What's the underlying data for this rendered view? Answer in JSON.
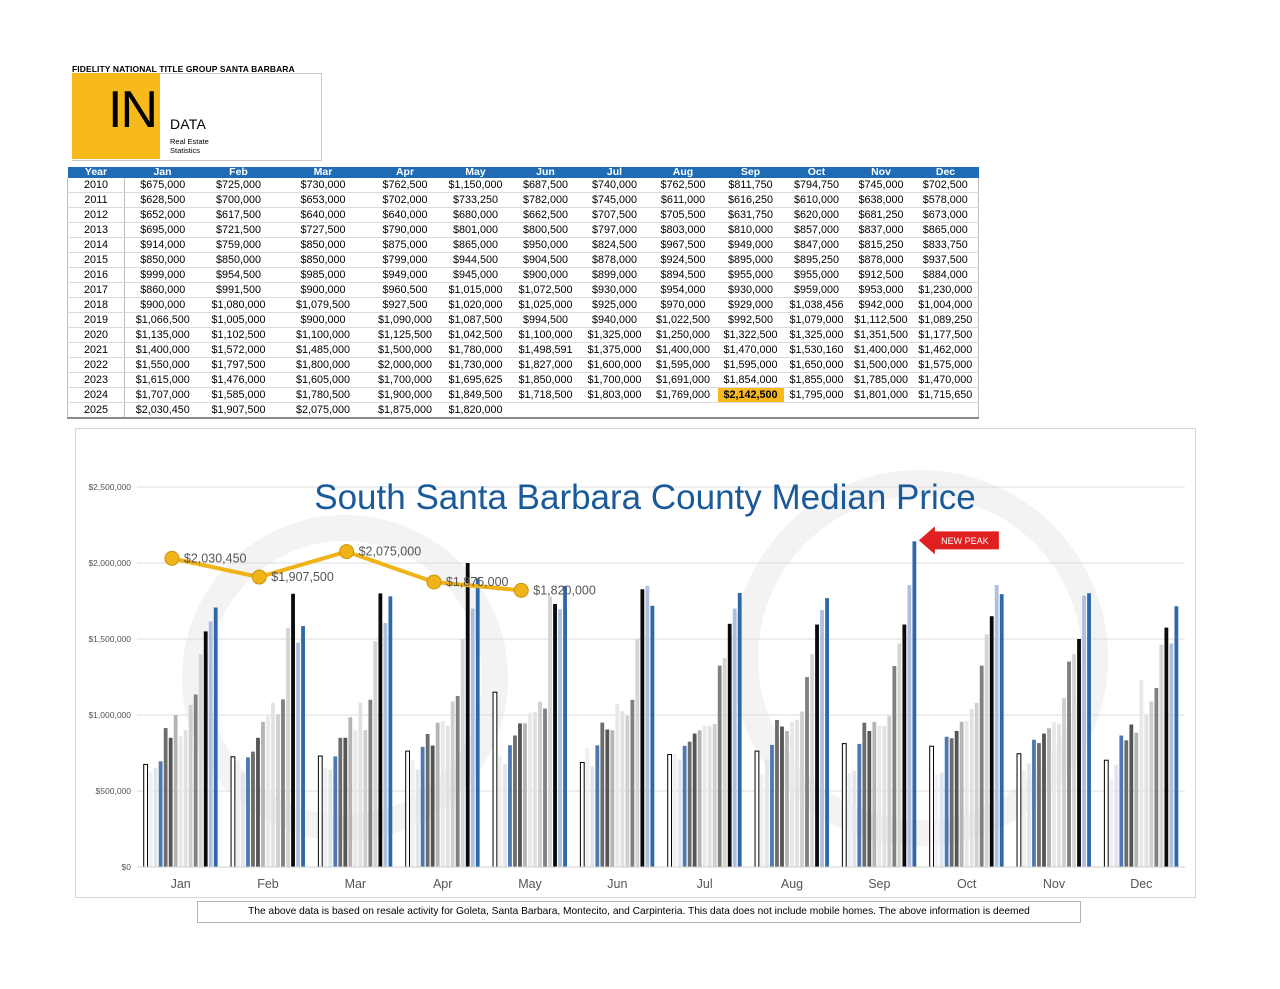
{
  "header": {
    "brand": "FIDELITY NATIONAL TITLE GROUP SANTA BARBARA",
    "logo_in": "IN",
    "logo_data": "DATA",
    "logo_sub1": "Real Estate",
    "logo_sub2": "Statistics"
  },
  "table": {
    "columns": [
      "Year",
      "Jan",
      "Feb",
      "Mar",
      "Apr",
      "May",
      "Jun",
      "Jul",
      "Aug",
      "Sep",
      "Oct",
      "Nov",
      "Dec"
    ],
    "rows": [
      [
        "2010",
        "$675,000",
        "$725,000",
        "$730,000",
        "$762,500",
        "$1,150,000",
        "$687,500",
        "$740,000",
        "$762,500",
        "$811,750",
        "$794,750",
        "$745,000",
        "$702,500"
      ],
      [
        "2011",
        "$628,500",
        "$700,000",
        "$653,000",
        "$702,000",
        "$733,250",
        "$782,000",
        "$745,000",
        "$611,000",
        "$616,250",
        "$610,000",
        "$638,000",
        "$578,000"
      ],
      [
        "2012",
        "$652,000",
        "$617,500",
        "$640,000",
        "$640,000",
        "$680,000",
        "$662,500",
        "$707,500",
        "$705,500",
        "$631,750",
        "$620,000",
        "$681,250",
        "$673,000"
      ],
      [
        "2013",
        "$695,000",
        "$721,500",
        "$727,500",
        "$790,000",
        "$801,000",
        "$800,500",
        "$797,000",
        "$803,000",
        "$810,000",
        "$857,000",
        "$837,000",
        "$865,000"
      ],
      [
        "2014",
        "$914,000",
        "$759,000",
        "$850,000",
        "$875,000",
        "$865,000",
        "$950,000",
        "$824,500",
        "$967,500",
        "$949,000",
        "$847,000",
        "$815,250",
        "$833,750"
      ],
      [
        "2015",
        "$850,000",
        "$850,000",
        "$850,000",
        "$799,000",
        "$944,500",
        "$904,500",
        "$878,000",
        "$924,500",
        "$895,000",
        "$895,250",
        "$878,000",
        "$937,500"
      ],
      [
        "2016",
        "$999,000",
        "$954,500",
        "$985,000",
        "$949,000",
        "$945,000",
        "$900,000",
        "$899,000",
        "$894,500",
        "$955,000",
        "$955,000",
        "$912,500",
        "$884,000"
      ],
      [
        "2017",
        "$860,000",
        "$991,500",
        "$900,000",
        "$960,500",
        "$1,015,000",
        "$1,072,500",
        "$930,000",
        "$954,000",
        "$930,000",
        "$959,000",
        "$953,000",
        "$1,230,000"
      ],
      [
        "2018",
        "$900,000",
        "$1,080,000",
        "$1,079,500",
        "$927,500",
        "$1,020,000",
        "$1,025,000",
        "$925,000",
        "$970,000",
        "$929,000",
        "$1,038,456",
        "$942,000",
        "$1,004,000"
      ],
      [
        "2019",
        "$1,066,500",
        "$1,005,000",
        "$900,000",
        "$1,090,000",
        "$1,087,500",
        "$994,500",
        "$940,000",
        "$1,022,500",
        "$992,500",
        "$1,079,000",
        "$1,112,500",
        "$1,089,250"
      ],
      [
        "2020",
        "$1,135,000",
        "$1,102,500",
        "$1,100,000",
        "$1,125,500",
        "$1,042,500",
        "$1,100,000",
        "$1,325,000",
        "$1,250,000",
        "$1,322,500",
        "$1,325,000",
        "$1,351,500",
        "$1,177,500"
      ],
      [
        "2021",
        "$1,400,000",
        "$1,572,000",
        "$1,485,000",
        "$1,500,000",
        "$1,780,000",
        "$1,498,591",
        "$1,375,000",
        "$1,400,000",
        "$1,470,000",
        "$1,530,160",
        "$1,400,000",
        "$1,462,000"
      ],
      [
        "2022",
        "$1,550,000",
        "$1,797,500",
        "$1,800,000",
        "$2,000,000",
        "$1,730,000",
        "$1,827,000",
        "$1,600,000",
        "$1,595,000",
        "$1,595,000",
        "$1,650,000",
        "$1,500,000",
        "$1,575,000"
      ],
      [
        "2023",
        "$1,615,000",
        "$1,476,000",
        "$1,605,000",
        "$1,700,000",
        "$1,695,625",
        "$1,850,000",
        "$1,700,000",
        "$1,691,000",
        "$1,854,000",
        "$1,855,000",
        "$1,785,000",
        "$1,470,000"
      ],
      [
        "2024",
        "$1,707,000",
        "$1,585,000",
        "$1,780,500",
        "$1,900,000",
        "$1,849,500",
        "$1,718,500",
        "$1,803,000",
        "$1,769,000",
        "$2,142,500",
        "$1,795,000",
        "$1,801,000",
        "$1,715,650"
      ],
      [
        "2025",
        "$2,030,450",
        "$1,907,500",
        "$2,075,000",
        "$1,875,000",
        "$1,820,000",
        "",
        "",
        "",
        "",
        "",
        "",
        ""
      ]
    ],
    "highlight_cell": {
      "row": 14,
      "col": 9,
      "color": "#f8b91c"
    }
  },
  "chart_data": {
    "type": "bar",
    "title": "South Santa Barbara County Median Price",
    "categories": [
      "Jan",
      "Feb",
      "Mar",
      "Apr",
      "May",
      "Jun",
      "Jul",
      "Aug",
      "Sep",
      "Oct",
      "Nov",
      "Dec"
    ],
    "ylim": [
      0,
      2500000
    ],
    "yticks": [
      0,
      500000,
      1000000,
      1500000,
      2000000,
      2500000
    ],
    "ytick_labels": [
      "$0",
      "$500,000",
      "$1,000,000",
      "$1,500,000",
      "$2,000,000",
      "$2,500,000"
    ],
    "grid": true,
    "series": [
      {
        "year": 2010,
        "color": "#ffffff",
        "values": [
          675000,
          725000,
          730000,
          762500,
          1150000,
          687500,
          740000,
          762500,
          811750,
          794750,
          745000,
          702500
        ]
      },
      {
        "year": 2011,
        "color": "#f0f0f0",
        "values": [
          628500,
          700000,
          653000,
          702000,
          733250,
          782000,
          745000,
          611000,
          616250,
          610000,
          638000,
          578000
        ]
      },
      {
        "year": 2012,
        "color": "#dfe6f0",
        "values": [
          652000,
          617500,
          640000,
          640000,
          680000,
          662500,
          707500,
          705500,
          631750,
          620000,
          681250,
          673000
        ]
      },
      {
        "year": 2013,
        "color": "#4f78b0",
        "values": [
          695000,
          721500,
          727500,
          790000,
          801000,
          800500,
          797000,
          803000,
          810000,
          857000,
          837000,
          865000
        ]
      },
      {
        "year": 2014,
        "color": "#6c6c6c",
        "values": [
          914000,
          759000,
          850000,
          875000,
          865000,
          950000,
          824500,
          967500,
          949000,
          847000,
          815250,
          833750
        ]
      },
      {
        "year": 2015,
        "color": "#555555",
        "values": [
          850000,
          850000,
          850000,
          799000,
          944500,
          904500,
          878000,
          924500,
          895000,
          895250,
          878000,
          937500
        ]
      },
      {
        "year": 2016,
        "color": "#b4b4b4",
        "values": [
          999000,
          954500,
          985000,
          949000,
          945000,
          900000,
          899000,
          894500,
          955000,
          955000,
          912500,
          884000
        ]
      },
      {
        "year": 2017,
        "color": "#e8e8e8",
        "values": [
          860000,
          991500,
          900000,
          960500,
          1015000,
          1072500,
          930000,
          954000,
          930000,
          959000,
          953000,
          1230000
        ]
      },
      {
        "year": 2018,
        "color": "#e1e1e1",
        "values": [
          900000,
          1080000,
          1079500,
          927500,
          1020000,
          1025000,
          925000,
          970000,
          929000,
          1038456,
          942000,
          1004000
        ]
      },
      {
        "year": 2019,
        "color": "#cfcfcf",
        "values": [
          1066500,
          1005000,
          900000,
          1090000,
          1087500,
          994500,
          940000,
          1022500,
          992500,
          1079000,
          1112500,
          1089250
        ]
      },
      {
        "year": 2020,
        "color": "#808080",
        "values": [
          1135000,
          1102500,
          1100000,
          1125500,
          1042500,
          1100000,
          1325000,
          1250000,
          1322500,
          1325000,
          1351500,
          1177500
        ]
      },
      {
        "year": 2021,
        "color": "#d4d4d4",
        "values": [
          1400000,
          1572000,
          1485000,
          1500000,
          1780000,
          1498591,
          1375000,
          1400000,
          1470000,
          1530160,
          1400000,
          1462000
        ]
      },
      {
        "year": 2022,
        "color": "#0a0a0a",
        "values": [
          1550000,
          1797500,
          1800000,
          2000000,
          1730000,
          1827000,
          1600000,
          1595000,
          1595000,
          1650000,
          1500000,
          1575000
        ]
      },
      {
        "year": 2023,
        "color": "#aebfdf",
        "values": [
          1615000,
          1476000,
          1605000,
          1700000,
          1695625,
          1850000,
          1700000,
          1691000,
          1854000,
          1855000,
          1785000,
          1470000
        ]
      },
      {
        "year": 2024,
        "color": "#2e68a8",
        "values": [
          1707000,
          1585000,
          1780500,
          1900000,
          1849500,
          1718500,
          1803000,
          1769000,
          2142500,
          1795000,
          1801000,
          1715650
        ]
      }
    ],
    "overlay_line": {
      "year": 2025,
      "color": "#f0b419",
      "values": [
        2030450,
        1907500,
        2075000,
        1875000,
        1820000
      ],
      "labels": [
        "$2,030,450",
        "$1,907,500",
        "$2,075,000",
        "$1,875,000",
        "$1,820,000"
      ]
    },
    "annotation": {
      "text": "NEW PEAK",
      "month": "Sep",
      "value": 2142500,
      "color": "#e02020"
    }
  },
  "footer": {
    "text": "The above data is based on resale activity for Goleta, Santa Barbara, Montecito, and Carpinteria.  This data does not include mobile homes.  The above information is deemed"
  }
}
